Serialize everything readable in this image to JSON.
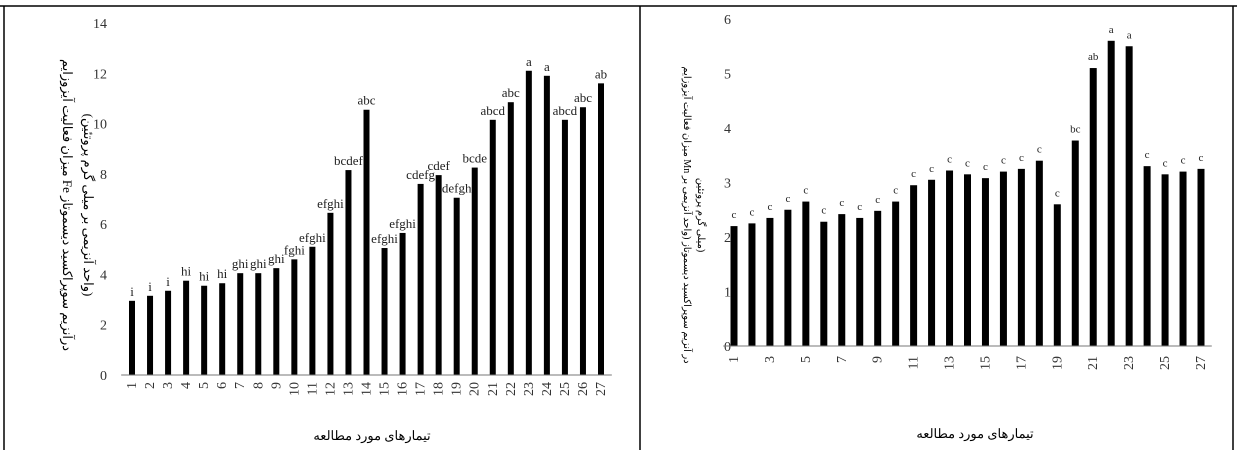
{
  "chart_data": [
    {
      "type": "bar",
      "ylabel": "میزان فعالیت آیزوزایم Fe درآنزیم سوپراکسید دیسموتاز",
      "ylabel2": "(واحد آنزیمی بر میلی گرم پروتئین)",
      "xlabel": "تیمارهای مورد مطالعه",
      "ylim": [
        0,
        14
      ],
      "yticks": [
        0,
        2,
        4,
        6,
        8,
        10,
        12,
        14
      ],
      "categories": [
        "1",
        "2",
        "3",
        "4",
        "5",
        "6",
        "7",
        "8",
        "9",
        "10",
        "11",
        "12",
        "13",
        "14",
        "15",
        "16",
        "17",
        "18",
        "19",
        "20",
        "21",
        "22",
        "23",
        "24",
        "25",
        "26",
        "27"
      ],
      "values": [
        2.95,
        3.15,
        3.35,
        3.75,
        3.55,
        3.65,
        4.05,
        4.05,
        4.25,
        4.6,
        5.1,
        6.45,
        8.15,
        10.55,
        5.05,
        5.65,
        7.6,
        7.95,
        7.05,
        8.25,
        10.15,
        10.85,
        12.1,
        11.9,
        10.15,
        10.65,
        11.6
      ],
      "labels": [
        "i",
        "i",
        "i",
        "hi",
        "hi",
        "hi",
        "ghi",
        "ghi",
        "ghi",
        "fghi",
        "efghi",
        "efghi",
        "bcdef",
        "abc",
        "efghi",
        "efghi",
        "cdefg",
        "cdef",
        "defgh",
        "bcde",
        "abcd",
        "abc",
        "a",
        "a",
        "abcd",
        "abc",
        "ab"
      ]
    },
    {
      "type": "bar",
      "ylabel": "میزان فعالیت آیزوزایم Mn در آنزیم سوپراکسید دیسموتاز (واحد آنزیمی بر",
      "ylabel2": "میلی گرم پروتئین)",
      "xlabel": "تیمارهای مورد مطالعه",
      "ylim": [
        0,
        6
      ],
      "yticks": [
        0,
        1,
        2,
        3,
        4,
        5,
        6
      ],
      "categories": [
        "1",
        "2",
        "3",
        "4",
        "5",
        "6",
        "7",
        "8",
        "9",
        "10",
        "11",
        "12",
        "13",
        "14",
        "15",
        "16",
        "17",
        "18",
        "19",
        "20",
        "21",
        "22",
        "23",
        "24",
        "25",
        "26",
        "27"
      ],
      "tick_labels": [
        "1",
        "3",
        "5",
        "7",
        "9",
        "11",
        "13",
        "15",
        "17",
        "19",
        "21",
        "23",
        "25",
        "27"
      ],
      "values": [
        2.2,
        2.25,
        2.35,
        2.5,
        2.65,
        2.28,
        2.42,
        2.35,
        2.48,
        2.65,
        2.95,
        3.05,
        3.22,
        3.15,
        3.08,
        3.2,
        3.25,
        3.4,
        2.6,
        3.77,
        5.1,
        5.6,
        5.5,
        3.3,
        3.15,
        3.2,
        3.25
      ],
      "labels": [
        "c",
        "c",
        "c",
        "c",
        "c",
        "c",
        "c",
        "c",
        "c",
        "c",
        "c",
        "c",
        "c",
        "c",
        "c",
        "c",
        "c",
        "c",
        "c",
        "bc",
        "ab",
        "a",
        "a",
        "c",
        "c",
        "c",
        "c"
      ]
    }
  ]
}
